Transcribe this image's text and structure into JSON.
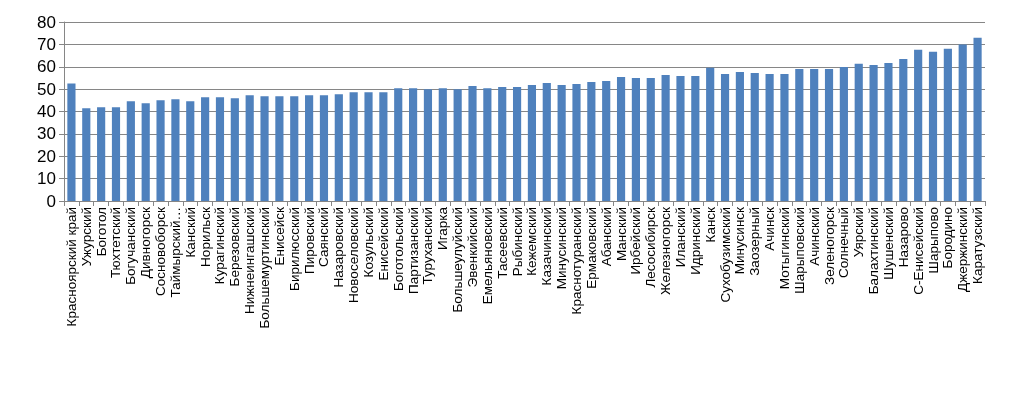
{
  "chart_data": {
    "type": "bar",
    "categories": [
      "Красноярский край",
      "Ужурский",
      "Боготол",
      "Тюхтетский",
      "Богучанский",
      "Дивногорск",
      "Сосновоборск",
      "Таймырский…",
      "Канский",
      "Норильск",
      "Курагинский",
      "Березовский",
      "Нижнеингашский",
      "Большемуртинский",
      "Енисейск",
      "Бирилюсский",
      "Пировский",
      "Саянский",
      "Назаровский",
      "Новоселовский",
      "Козульский",
      "Енисейский",
      "Боготольский",
      "Партизанский",
      "Туруханский",
      "Игарка",
      "Большеулуйский",
      "Эвенкийский",
      "Емельяновский",
      "Тасеевский",
      "Рыбинский",
      "Кежемский",
      "Казачинский",
      "Минусинский",
      "Краснотуранский",
      "Ермаковский",
      "Абанский",
      "Манский",
      "Ирбейский",
      "Лесосибирск",
      "Железногорск",
      "Иланский",
      "Идринский",
      "Канск",
      "Сухобузимский",
      "Минусинск",
      "Заозерный",
      "Ачинск",
      "Мотыгинский",
      "Шарыповский",
      "Ачинский",
      "Зеленогорск",
      "Солнечный",
      "Уярский",
      "Балахтинский",
      "Шушенский",
      "Назарово",
      "С-Енисейский",
      "Шарыпово",
      "Бородино",
      "Джержинский",
      "Каратузский"
    ],
    "values": [
      52.5,
      41.4,
      41.9,
      41.9,
      44.6,
      43.7,
      45,
      45.5,
      44.6,
      46.4,
      46.4,
      45.9,
      47.3,
      46.8,
      46.8,
      46.8,
      47.3,
      47.3,
      47.7,
      48.6,
      48.6,
      48.6,
      50.4,
      50.4,
      50,
      50.4,
      50,
      51.4,
      50.4,
      50.9,
      50.9,
      51.8,
      52.7,
      51.8,
      52.3,
      53.2,
      53.6,
      55.4,
      55,
      55,
      56.3,
      55.9,
      55.9,
      59.6,
      56.8,
      57.7,
      57.2,
      56.8,
      56.8,
      59,
      59,
      59,
      59.9,
      61.3,
      60.8,
      61.7,
      63.5,
      67.6,
      66.7,
      68,
      70,
      73
    ],
    "color": "#4f81bd",
    "ylim": [
      0,
      80
    ],
    "yticks": [
      0,
      10,
      20,
      30,
      40,
      50,
      60,
      70,
      80
    ],
    "grid": "y"
  }
}
